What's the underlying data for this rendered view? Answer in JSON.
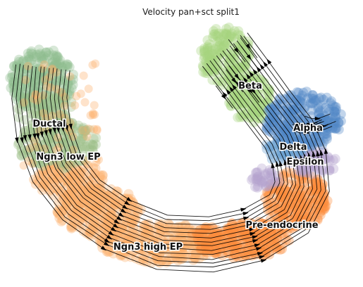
{
  "chart_data": {
    "type": "scatter",
    "title": "Velocity pan+sct split1",
    "axes_visible": false,
    "legend": "on data",
    "clusters": [
      {
        "name": "Ductal",
        "color": "#8fbc8f"
      },
      {
        "name": "Ngn3 low EP",
        "color": "#9fbf8a"
      },
      {
        "name": "Ngn3 high EP",
        "color": "#fdae6b"
      },
      {
        "name": "Pre-endocrine",
        "color": "#fd8d3c"
      },
      {
        "name": "Beta",
        "color": "#a6d47e"
      },
      {
        "name": "Alpha",
        "color": "#4f86c6"
      },
      {
        "name": "Delta",
        "color": "#6aa0d0"
      },
      {
        "name": "Epsilon",
        "color": "#b4a4cf"
      }
    ],
    "overlay": "velocity streamlines with arrows"
  }
}
